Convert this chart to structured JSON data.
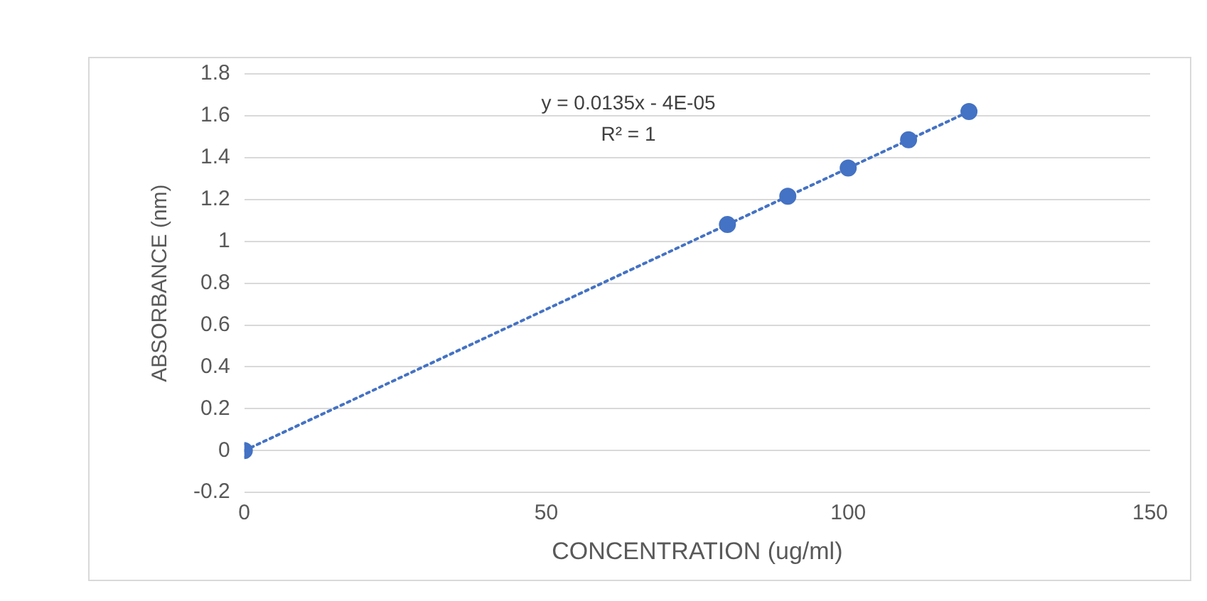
{
  "chart_data": {
    "type": "scatter",
    "xlabel": "CONCENTRATION (ug/ml)",
    "ylabel": "ABSORBANCE (nm)",
    "annotations": [
      "y = 0.0135x - 4E-05",
      "R² = 1"
    ],
    "series": [
      {
        "type": "scatter",
        "color": "#4472c4",
        "marker": "circle",
        "x": [
          0,
          80,
          90,
          100,
          110,
          120
        ],
        "values": [
          0,
          1.08,
          1.215,
          1.35,
          1.485,
          1.62
        ]
      },
      {
        "type": "line",
        "color": "#4472c4",
        "marker": "none",
        "line_style": "dotted",
        "x": [
          0,
          120
        ],
        "values": [
          0,
          1.62
        ]
      }
    ],
    "xlim": [
      0,
      150
    ],
    "xticks": [
      0,
      50,
      100,
      150
    ],
    "ylim": [
      -0.2,
      1.8
    ],
    "yticks": [
      -0.2,
      0,
      0.2,
      0.4,
      0.6,
      0.8,
      1,
      1.2,
      1.4,
      1.6,
      1.8
    ],
    "grid": "y",
    "legend": false
  }
}
